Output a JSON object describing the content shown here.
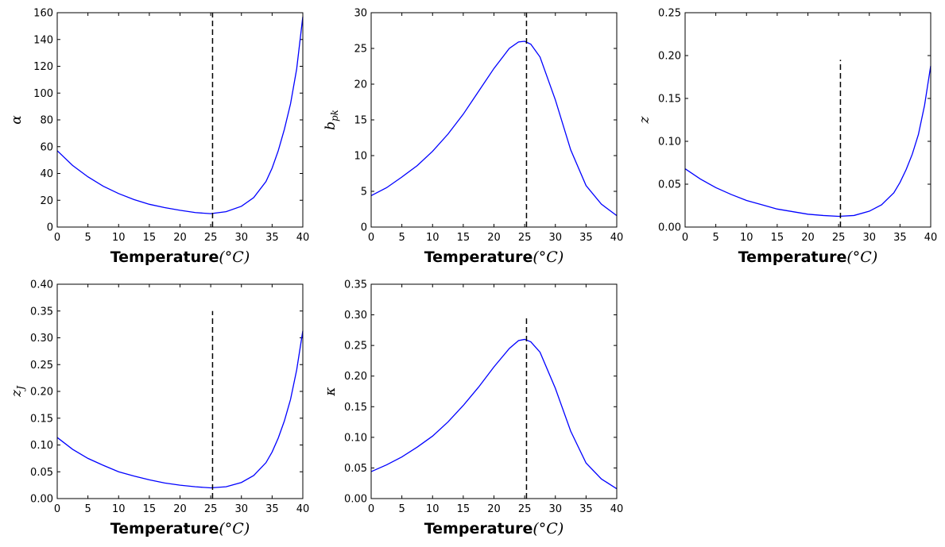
{
  "chart_data": [
    {
      "type": "line",
      "xlabel": "Temperature",
      "xlabel_unit": "(°C)",
      "ylabel": "α",
      "ylabel_sub": "",
      "xlim": [
        0,
        40
      ],
      "ylim": [
        0,
        160
      ],
      "xticks": [
        0,
        5,
        10,
        15,
        20,
        25,
        30,
        35,
        40
      ],
      "yticks": [
        0,
        20,
        40,
        60,
        80,
        100,
        120,
        140,
        160
      ],
      "ytick_labels": [
        "0",
        "20",
        "40",
        "60",
        "80",
        "100",
        "120",
        "140",
        "160"
      ],
      "series": [
        {
          "color": "#0000ff",
          "x": [
            0,
            2.5,
            5,
            7.5,
            10,
            12.5,
            15,
            17.5,
            20,
            22.5,
            25,
            27.5,
            30,
            32,
            34,
            35,
            36,
            37,
            38,
            39,
            40
          ],
          "y": [
            57,
            46,
            37.5,
            30.5,
            25,
            20.5,
            17,
            14.5,
            12.5,
            10.8,
            10,
            11.5,
            15.5,
            22,
            34,
            44,
            57,
            73,
            92,
            118,
            157
          ]
        }
      ],
      "vline": {
        "x": 25.3,
        "y_top": 160
      }
    },
    {
      "type": "line",
      "xlabel": "Temperature",
      "xlabel_unit": "(°C)",
      "ylabel": "b",
      "ylabel_sub": "pk",
      "xlim": [
        0,
        40
      ],
      "ylim": [
        0,
        30
      ],
      "xticks": [
        0,
        5,
        10,
        15,
        20,
        25,
        30,
        35,
        40
      ],
      "yticks": [
        0,
        5,
        10,
        15,
        20,
        25,
        30
      ],
      "ytick_labels": [
        "0",
        "5",
        "10",
        "15",
        "20",
        "25",
        "30"
      ],
      "series": [
        {
          "color": "#0000ff",
          "x": [
            0,
            2.5,
            5,
            7.5,
            10,
            12.5,
            15,
            17.5,
            20,
            22.5,
            24,
            25,
            26,
            27.5,
            30,
            32.5,
            35,
            37.5,
            40
          ],
          "y": [
            4.4,
            5.5,
            7,
            8.6,
            10.6,
            13,
            15.8,
            19,
            22.2,
            25,
            25.9,
            26,
            25.6,
            23.8,
            17.8,
            10.8,
            5.8,
            3.2,
            1.6
          ]
        }
      ],
      "vline": {
        "x": 25.3,
        "y_top": 30
      }
    },
    {
      "type": "line",
      "xlabel": "Temperature",
      "xlabel_unit": "(°C)",
      "ylabel": "z",
      "ylabel_sub": "",
      "xlim": [
        0,
        40
      ],
      "ylim": [
        0,
        0.25
      ],
      "xticks": [
        0,
        5,
        10,
        15,
        20,
        25,
        30,
        35,
        40
      ],
      "yticks": [
        0,
        0.05,
        0.1,
        0.15,
        0.2,
        0.25
      ],
      "ytick_labels": [
        "0.00",
        "0.05",
        "0.10",
        "0.15",
        "0.20",
        "0.25"
      ],
      "series": [
        {
          "color": "#0000ff",
          "x": [
            0,
            2.5,
            5,
            7.5,
            10,
            12.5,
            15,
            17.5,
            20,
            22.5,
            25,
            27.5,
            30,
            32,
            34,
            35,
            36,
            37,
            38,
            39,
            40
          ],
          "y": [
            0.068,
            0.056,
            0.046,
            0.038,
            0.031,
            0.026,
            0.021,
            0.018,
            0.015,
            0.0135,
            0.0125,
            0.0135,
            0.0185,
            0.026,
            0.04,
            0.052,
            0.067,
            0.085,
            0.108,
            0.142,
            0.188
          ]
        }
      ],
      "vline": {
        "x": 25.3,
        "y_top": 0.195
      }
    },
    {
      "type": "line",
      "xlabel": "Temperature",
      "xlabel_unit": "(°C)",
      "ylabel": "z",
      "ylabel_sub": "J",
      "xlim": [
        0,
        40
      ],
      "ylim": [
        0,
        0.4
      ],
      "xticks": [
        0,
        5,
        10,
        15,
        20,
        25,
        30,
        35,
        40
      ],
      "yticks": [
        0,
        0.05,
        0.1,
        0.15,
        0.2,
        0.25,
        0.3,
        0.35,
        0.4
      ],
      "ytick_labels": [
        "0.00",
        "0.05",
        "0.10",
        "0.15",
        "0.20",
        "0.25",
        "0.30",
        "0.35",
        "0.40"
      ],
      "series": [
        {
          "color": "#0000ff",
          "x": [
            0,
            2.5,
            5,
            7.5,
            10,
            12.5,
            15,
            17.5,
            20,
            22.5,
            25,
            27.5,
            30,
            32,
            34,
            35,
            36,
            37,
            38,
            39,
            40
          ],
          "y": [
            0.114,
            0.092,
            0.075,
            0.062,
            0.05,
            0.042,
            0.035,
            0.029,
            0.025,
            0.022,
            0.02,
            0.022,
            0.03,
            0.043,
            0.067,
            0.087,
            0.113,
            0.145,
            0.185,
            0.24,
            0.313
          ]
        }
      ],
      "vline": {
        "x": 25.3,
        "y_top": 0.35
      }
    },
    {
      "type": "line",
      "xlabel": "Temperature",
      "xlabel_unit": "(°C)",
      "ylabel": "κ",
      "ylabel_sub": "",
      "xlim": [
        0,
        40
      ],
      "ylim": [
        0,
        0.35
      ],
      "xticks": [
        0,
        5,
        10,
        15,
        20,
        25,
        30,
        35,
        40
      ],
      "yticks": [
        0,
        0.05,
        0.1,
        0.15,
        0.2,
        0.25,
        0.3,
        0.35
      ],
      "ytick_labels": [
        "0.00",
        "0.05",
        "0.10",
        "0.15",
        "0.20",
        "0.25",
        "0.30",
        "0.35"
      ],
      "series": [
        {
          "color": "#0000ff",
          "x": [
            0,
            2.5,
            5,
            7.5,
            10,
            12.5,
            15,
            17.5,
            20,
            22.5,
            24,
            25,
            26,
            27.5,
            30,
            32.5,
            35,
            37.5,
            40
          ],
          "y": [
            0.044,
            0.055,
            0.068,
            0.084,
            0.102,
            0.125,
            0.152,
            0.182,
            0.215,
            0.245,
            0.258,
            0.26,
            0.256,
            0.239,
            0.18,
            0.11,
            0.058,
            0.032,
            0.016
          ]
        }
      ],
      "vline": {
        "x": 25.3,
        "y_top": 0.295
      }
    }
  ]
}
